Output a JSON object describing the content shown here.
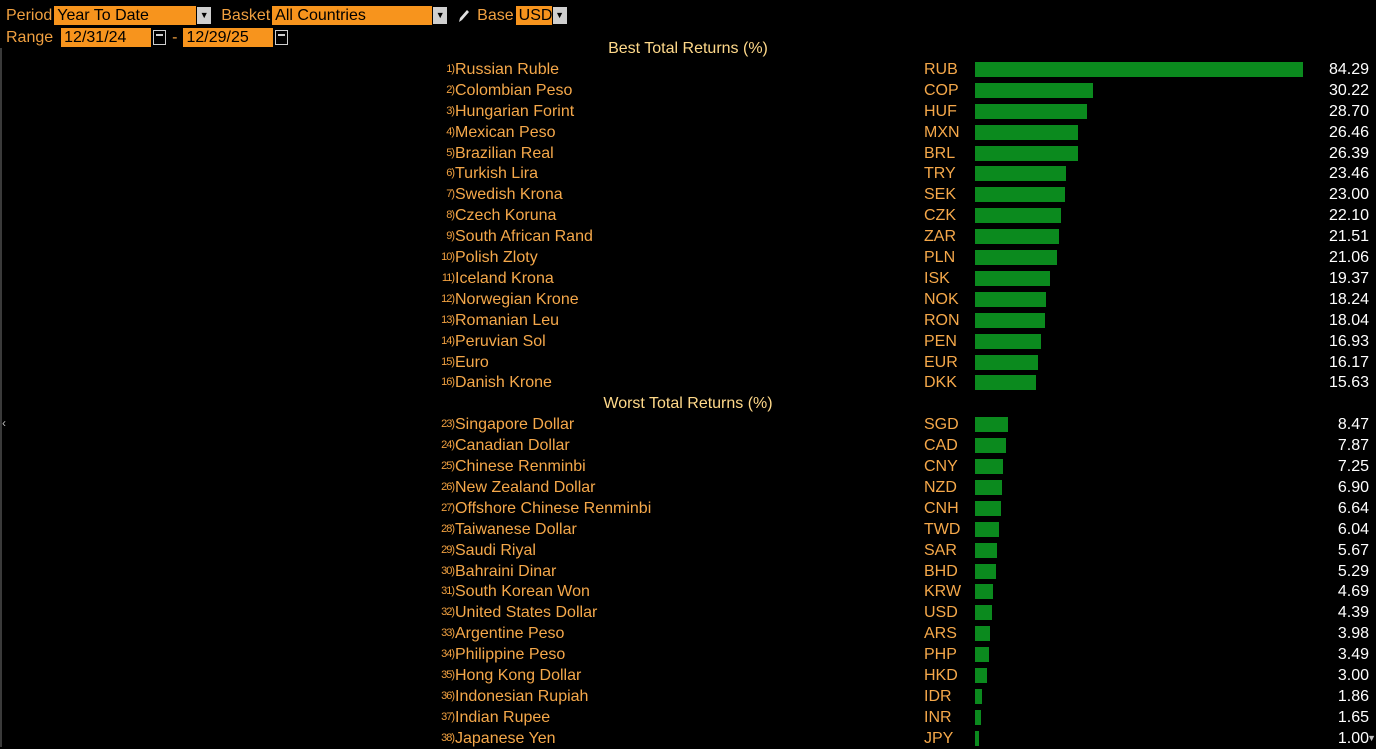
{
  "toolbar": {
    "period_label": "Period",
    "period_value": "Year To Date",
    "basket_label": "Basket",
    "basket_value": "All Countries",
    "base_label": "Base",
    "base_value": "USD",
    "range_label": "Range",
    "range_start": "12/31/24",
    "range_separator": "-",
    "range_end": "12/29/25"
  },
  "chart_data": {
    "type": "bar",
    "orientation": "horizontal",
    "xlim": [
      0,
      84.29
    ],
    "sections": [
      {
        "title": "Best Total Returns (%)",
        "rows": [
          {
            "rank": "1)",
            "name": "Russian Ruble",
            "code": "RUB",
            "value": 84.29
          },
          {
            "rank": "2)",
            "name": "Colombian Peso",
            "code": "COP",
            "value": 30.22
          },
          {
            "rank": "3)",
            "name": "Hungarian Forint",
            "code": "HUF",
            "value": 28.7
          },
          {
            "rank": "4)",
            "name": "Mexican Peso",
            "code": "MXN",
            "value": 26.46
          },
          {
            "rank": "5)",
            "name": "Brazilian Real",
            "code": "BRL",
            "value": 26.39
          },
          {
            "rank": "6)",
            "name": "Turkish Lira",
            "code": "TRY",
            "value": 23.46
          },
          {
            "rank": "7)",
            "name": "Swedish Krona",
            "code": "SEK",
            "value": 23.0
          },
          {
            "rank": "8)",
            "name": "Czech Koruna",
            "code": "CZK",
            "value": 22.1
          },
          {
            "rank": "9)",
            "name": "South African Rand",
            "code": "ZAR",
            "value": 21.51
          },
          {
            "rank": "10)",
            "name": "Polish Zloty",
            "code": "PLN",
            "value": 21.06
          },
          {
            "rank": "11)",
            "name": "Iceland Krona",
            "code": "ISK",
            "value": 19.37
          },
          {
            "rank": "12)",
            "name": "Norwegian Krone",
            "code": "NOK",
            "value": 18.24
          },
          {
            "rank": "13)",
            "name": "Romanian Leu",
            "code": "RON",
            "value": 18.04
          },
          {
            "rank": "14)",
            "name": "Peruvian Sol",
            "code": "PEN",
            "value": 16.93
          },
          {
            "rank": "15)",
            "name": "Euro",
            "code": "EUR",
            "value": 16.17
          },
          {
            "rank": "16)",
            "name": "Danish Krone",
            "code": "DKK",
            "value": 15.63
          }
        ]
      },
      {
        "title": "Worst Total Returns (%)",
        "rows": [
          {
            "rank": "23)",
            "name": "Singapore Dollar",
            "code": "SGD",
            "value": 8.47
          },
          {
            "rank": "24)",
            "name": "Canadian Dollar",
            "code": "CAD",
            "value": 7.87
          },
          {
            "rank": "25)",
            "name": "Chinese Renminbi",
            "code": "CNY",
            "value": 7.25
          },
          {
            "rank": "26)",
            "name": "New Zealand Dollar",
            "code": "NZD",
            "value": 6.9
          },
          {
            "rank": "27)",
            "name": "Offshore Chinese Renminbi",
            "code": "CNH",
            "value": 6.64
          },
          {
            "rank": "28)",
            "name": "Taiwanese Dollar",
            "code": "TWD",
            "value": 6.04
          },
          {
            "rank": "29)",
            "name": "Saudi Riyal",
            "code": "SAR",
            "value": 5.67
          },
          {
            "rank": "30)",
            "name": "Bahraini Dinar",
            "code": "BHD",
            "value": 5.29
          },
          {
            "rank": "31)",
            "name": "South Korean Won",
            "code": "KRW",
            "value": 4.69
          },
          {
            "rank": "32)",
            "name": "United States Dollar",
            "code": "USD",
            "value": 4.39
          },
          {
            "rank": "33)",
            "name": "Argentine Peso",
            "code": "ARS",
            "value": 3.98
          },
          {
            "rank": "34)",
            "name": "Philippine Peso",
            "code": "PHP",
            "value": 3.49
          },
          {
            "rank": "35)",
            "name": "Hong Kong Dollar",
            "code": "HKD",
            "value": 3.0
          },
          {
            "rank": "36)",
            "name": "Indonesian Rupiah",
            "code": "IDR",
            "value": 1.86
          },
          {
            "rank": "37)",
            "name": "Indian Rupee",
            "code": "INR",
            "value": 1.65
          },
          {
            "rank": "38)",
            "name": "Japanese Yen",
            "code": "JPY",
            "value": 1.0
          }
        ]
      }
    ],
    "bar_color": "#0b8a1e"
  },
  "icons": {
    "dropdown": "chevron-down-icon",
    "calendar": "calendar-icon",
    "edit": "pencil-icon"
  }
}
